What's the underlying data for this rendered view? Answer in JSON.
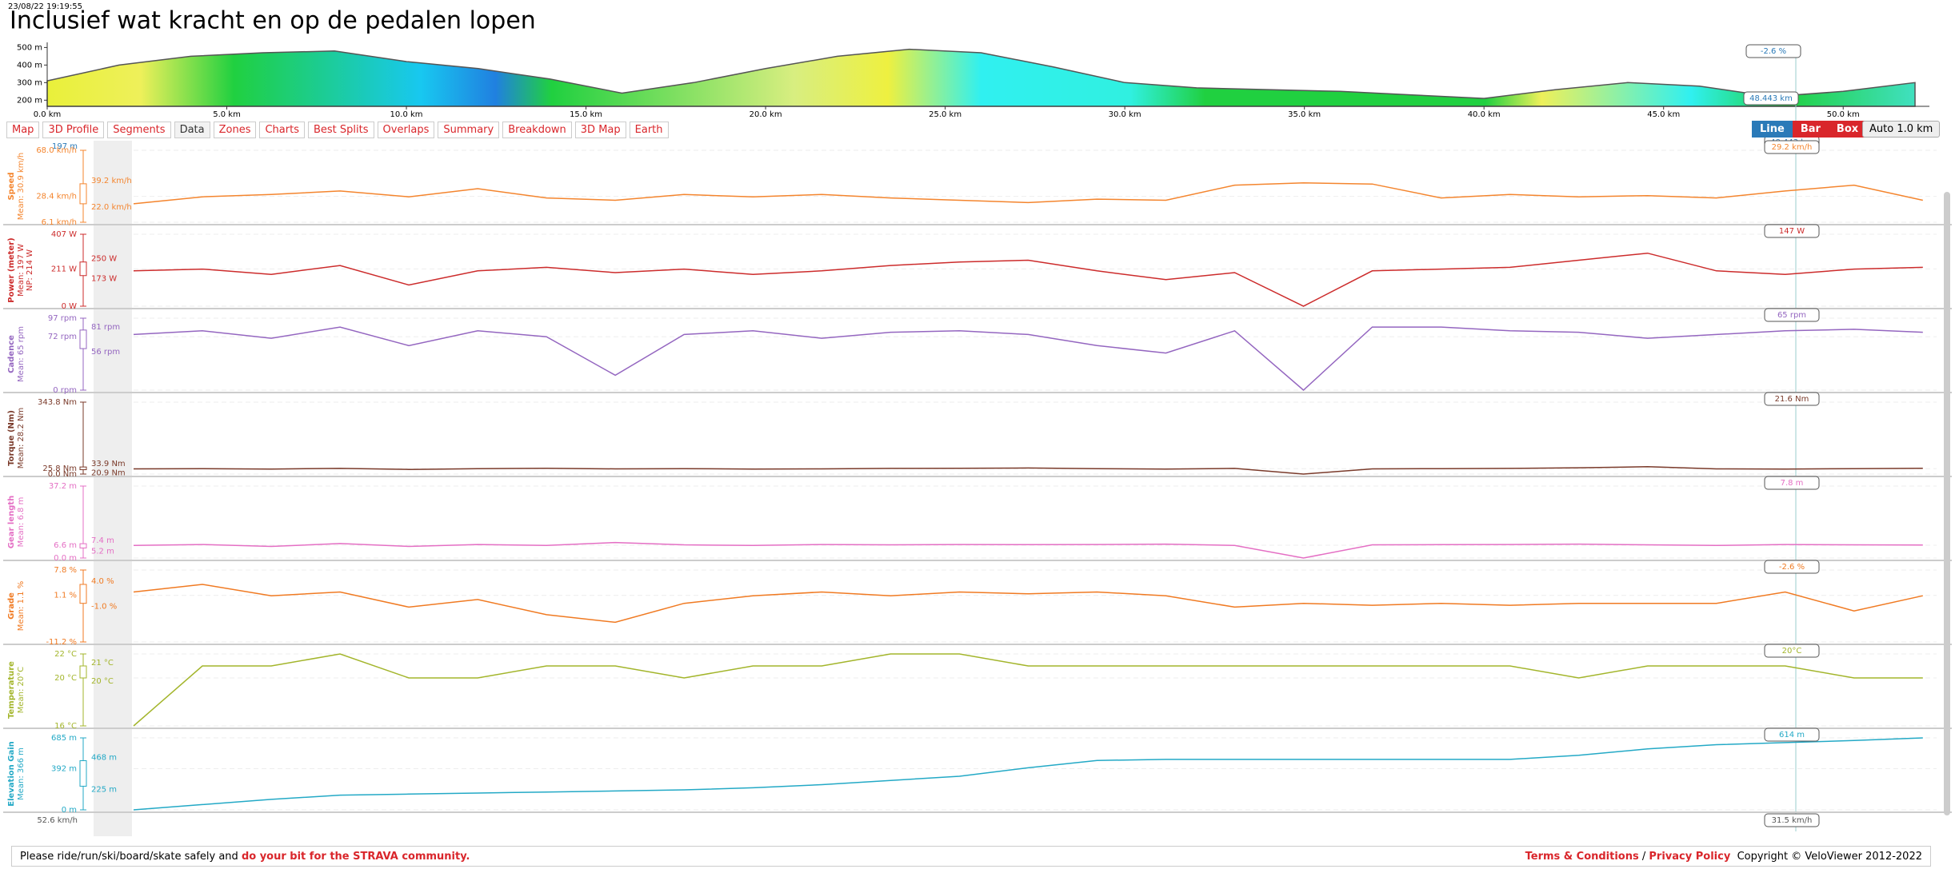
{
  "header": {
    "timestamp": "23/08/22 19:19:55",
    "title": "Inclusief wat kracht en op de pedalen lopen"
  },
  "trace_x": [
    0,
    2,
    4,
    6,
    8,
    10,
    12,
    14,
    16,
    18,
    20,
    22,
    24,
    26,
    28,
    30,
    32,
    34,
    36,
    38,
    40,
    42,
    44,
    46,
    48,
    50,
    52
  ],
  "xlim": [
    0,
    52.4
  ],
  "profile": {
    "ylim": [
      165,
      520
    ],
    "yticks": [
      {
        "value": 500,
        "label": "500 m"
      },
      {
        "value": 400,
        "label": "400 m"
      },
      {
        "value": 300,
        "label": "300 m"
      },
      {
        "value": 200,
        "label": "200 m"
      }
    ],
    "xticks": [
      {
        "value": 0,
        "label": "0.0 km"
      },
      {
        "value": 5,
        "label": "5.0 km"
      },
      {
        "value": 10,
        "label": "10.0 km"
      },
      {
        "value": 15,
        "label": "15.0 km"
      },
      {
        "value": 20,
        "label": "20.0 km"
      },
      {
        "value": 25,
        "label": "25.0 km"
      },
      {
        "value": 30,
        "label": "30.0 km"
      },
      {
        "value": 35,
        "label": "35.0 km"
      },
      {
        "value": 40,
        "label": "40.0 km"
      },
      {
        "value": 45,
        "label": "45.0 km"
      },
      {
        "value": 50,
        "label": "50.0 km"
      }
    ],
    "values": [
      310,
      400,
      450,
      470,
      480,
      420,
      380,
      320,
      240,
      300,
      380,
      450,
      490,
      470,
      390,
      300,
      270,
      260,
      250,
      230,
      210,
      260,
      300,
      280,
      220,
      250,
      300
    ],
    "grade_label": "-2.6 %",
    "distance_label": "48.443 km"
  },
  "tabs": [
    "Map",
    "3D Profile",
    "Segments",
    "Data",
    "Zones",
    "Charts",
    "Best Splits",
    "Overlaps",
    "Summary",
    "Breakdown",
    "3D Map",
    "Earth"
  ],
  "active_tab": "Data",
  "buttons": [
    "Line",
    "Bar",
    "Box"
  ],
  "select": "Auto 1.0 km",
  "hidden_panel": {
    "bottom_label": "197 m",
    "cursor": "48.443 km"
  },
  "panels": [
    {
      "label": "Speed",
      "stats": [
        "Mean: 30.9 km/h"
      ],
      "color": "#f4852e",
      "ylim": [
        6.1,
        68
      ],
      "yticks": [
        {
          "value": 68,
          "label": "68.0 km/h"
        },
        {
          "value": 28.4,
          "label": "28.4 km/h"
        },
        {
          "value": 6.1,
          "label": "6.1 km/h"
        }
      ],
      "box": [
        {
          "value": 39.2,
          "label": "39.2 km/h"
        },
        {
          "value": 22,
          "label": "22.0 km/h"
        }
      ],
      "cursor": "29.2 km/h",
      "values": [
        22,
        28,
        30,
        33,
        28,
        35,
        27,
        25,
        30,
        28,
        30,
        27,
        25,
        23,
        26,
        25,
        38,
        40,
        39,
        27,
        30,
        28,
        29,
        27,
        33,
        38,
        25
      ]
    },
    {
      "label": "Power (meter)",
      "stats": [
        "Mean: 197 W",
        "NP: 214 W"
      ],
      "color": "#cc2b2b",
      "ylim": [
        0,
        407
      ],
      "yticks": [
        {
          "value": 407,
          "label": "407 W"
        },
        {
          "value": 211,
          "label": "211 W"
        },
        {
          "value": 0,
          "label": "0 W"
        }
      ],
      "box": [
        {
          "value": 250,
          "label": "250 W"
        },
        {
          "value": 173,
          "label": "173 W"
        }
      ],
      "cursor": "147 W",
      "values": [
        200,
        210,
        180,
        230,
        120,
        200,
        220,
        190,
        210,
        180,
        200,
        230,
        250,
        260,
        200,
        150,
        190,
        0,
        200,
        210,
        220,
        260,
        300,
        200,
        180,
        210,
        220
      ]
    },
    {
      "label": "Cadence",
      "stats": [
        "Mean: 65 rpm"
      ],
      "color": "#9466c0",
      "ylim": [
        0,
        97
      ],
      "yticks": [
        {
          "value": 97,
          "label": "97 rpm"
        },
        {
          "value": 72,
          "label": "72 rpm"
        },
        {
          "value": 0,
          "label": "0 rpm"
        }
      ],
      "box": [
        {
          "value": 81,
          "label": "81 rpm"
        },
        {
          "value": 56,
          "label": "56 rpm"
        }
      ],
      "cursor": "65 rpm",
      "values": [
        75,
        80,
        70,
        85,
        60,
        80,
        72,
        20,
        75,
        80,
        70,
        78,
        80,
        75,
        60,
        50,
        80,
        0,
        85,
        85,
        80,
        78,
        70,
        75,
        80,
        82,
        78
      ]
    },
    {
      "label": "Torque (Nm)",
      "stats": [
        "Mean: 28.2 Nm"
      ],
      "color": "#7a3a2a",
      "ylim": [
        0,
        343.8
      ],
      "yticks": [
        {
          "value": 343.8,
          "label": "343.8 Nm"
        },
        {
          "value": 25.8,
          "label": "25.8 Nm"
        },
        {
          "value": 0,
          "label": "0.0 Nm"
        }
      ],
      "box": [
        {
          "value": 33.9,
          "label": "33.9 Nm"
        },
        {
          "value": 20.9,
          "label": "20.9 Nm"
        }
      ],
      "cursor": "21.6 Nm",
      "values": [
        25,
        26,
        24,
        27,
        22,
        26,
        28,
        25,
        26,
        24,
        25,
        27,
        28,
        29,
        26,
        24,
        27,
        0,
        25,
        26,
        27,
        30,
        35,
        25,
        24,
        26,
        28
      ]
    },
    {
      "label": "Gear length",
      "stats": [
        "Mean: 6.8 m"
      ],
      "color": "#e46fc4",
      "ylim": [
        0,
        37.2
      ],
      "yticks": [
        {
          "value": 37.2,
          "label": "37.2 m"
        },
        {
          "value": 6.6,
          "label": "6.6 m"
        },
        {
          "value": 0,
          "label": "0.0 m"
        }
      ],
      "box": [
        {
          "value": 7.4,
          "label": "7.4 m"
        },
        {
          "value": 5.2,
          "label": "5.2 m"
        }
      ],
      "cursor": "7.8 m",
      "values": [
        6.5,
        7,
        6,
        7.5,
        6,
        7,
        6.5,
        8,
        6.8,
        6.5,
        7,
        6.8,
        7,
        6.9,
        7,
        7.2,
        6.5,
        0,
        6.8,
        6.9,
        7,
        7.2,
        6.8,
        6.5,
        7,
        6.8,
        6.7
      ]
    },
    {
      "label": "Grade",
      "stats": [
        "Mean: 1.1 %"
      ],
      "color": "#f07a22",
      "ylim": [
        -11.2,
        7.8
      ],
      "yticks": [
        {
          "value": 7.8,
          "label": "7.8 %"
        },
        {
          "value": 1.1,
          "label": "1.1 %"
        },
        {
          "value": -11.2,
          "label": "-11.2 %"
        }
      ],
      "box": [
        {
          "value": 4,
          "label": "4.0 %"
        },
        {
          "value": -1,
          "label": "-1.0 %"
        }
      ],
      "cursor": "-2.6 %",
      "values": [
        2,
        4,
        1,
        2,
        -2,
        0,
        -4,
        -6,
        -1,
        1,
        2,
        1,
        2,
        1.5,
        2,
        1,
        -2,
        -1,
        -1.5,
        -1,
        -1.5,
        -1,
        -1,
        -1,
        2,
        -3,
        1
      ]
    },
    {
      "label": "Temperature",
      "stats": [
        "Mean: 20°C"
      ],
      "color": "#a3b52b",
      "ylim": [
        16,
        22
      ],
      "yticks": [
        {
          "value": 22,
          "label": "22 °C"
        },
        {
          "value": 20,
          "label": "20 °C"
        },
        {
          "value": 16,
          "label": "16 °C"
        }
      ],
      "box": [
        {
          "value": 21,
          "label": "21 °C"
        },
        {
          "value": 20,
          "label": "20 °C"
        }
      ],
      "cursor": "20°C",
      "values": [
        16,
        21,
        21,
        22,
        20,
        20,
        21,
        21,
        20,
        21,
        21,
        22,
        22,
        21,
        21,
        21,
        21,
        21,
        21,
        21,
        21,
        20,
        21,
        21,
        21,
        20,
        20
      ]
    },
    {
      "label": "Elevation Gain",
      "stats": [
        "Mean: 366 m"
      ],
      "color": "#23a9c6",
      "ylim": [
        0,
        685
      ],
      "yticks": [
        {
          "value": 685,
          "label": "685 m"
        },
        {
          "value": 392,
          "label": "392 m"
        },
        {
          "value": 0,
          "label": "0 m"
        }
      ],
      "box": [
        {
          "value": 468,
          "label": "468 m"
        },
        {
          "value": 225,
          "label": "225 m"
        }
      ],
      "cursor": "614 m",
      "values": [
        0,
        50,
        100,
        140,
        150,
        160,
        170,
        180,
        190,
        210,
        240,
        280,
        320,
        400,
        470,
        480,
        480,
        480,
        480,
        480,
        480,
        520,
        580,
        620,
        640,
        660,
        685
      ]
    }
  ],
  "partial_panel": {
    "top_label": "52.6 km/h",
    "cursor": "31.5 km/h"
  },
  "footer": {
    "text": "Please ride/run/ski/board/skate safely and",
    "link": "do your bit for the STRAVA community.",
    "terms": "Terms & Conditions",
    "separator": "/",
    "privacy": "Privacy Policy",
    "copyright": "Copyright © VeloViewer 2012-2022"
  }
}
